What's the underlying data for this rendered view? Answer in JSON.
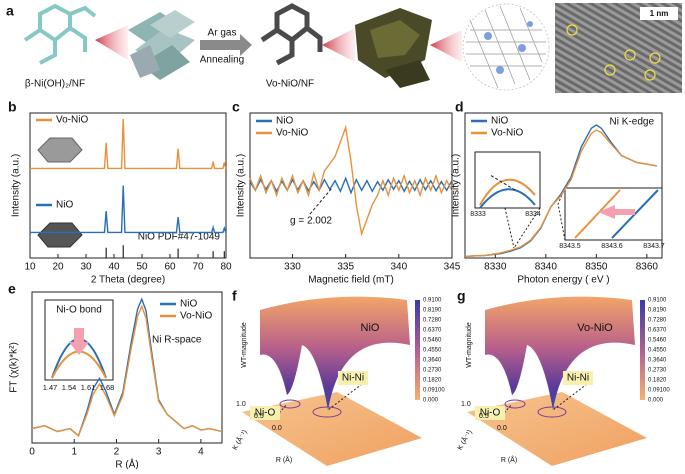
{
  "panel_labels": [
    "a",
    "b",
    "c",
    "d",
    "e",
    "f",
    "g"
  ],
  "panel_a": {
    "precursor": "β-Ni(OH)₂/NF",
    "arrow_top": "Ar gas",
    "arrow_bottom": "Annealing",
    "product": "Vo-NiO/NF",
    "scale_bar": "1 nm"
  },
  "chart_data": [
    {
      "type": "line",
      "xlabel": "2 Theta (degree)",
      "ylabel": "Intensity (a.u.)",
      "xlim": [
        10,
        80
      ],
      "ylim": [
        0,
        17
      ],
      "xticks": [
        10,
        20,
        30,
        40,
        50,
        60,
        70,
        80
      ],
      "x": [
        10,
        20,
        30,
        36.6,
        37.2,
        37.8,
        42.7,
        43.3,
        43.9,
        50,
        62.3,
        62.9,
        63.5,
        74.9,
        75.4,
        75.9,
        78.9,
        79.4,
        79.9,
        80
      ],
      "series": [
        {
          "name": "NiO",
          "color": "#2a6fb5",
          "values": [
            3,
            3,
            3,
            3,
            5.5,
            3,
            3,
            8.5,
            3,
            3,
            3,
            4.8,
            3,
            3,
            3.6,
            3,
            3,
            3.5,
            3,
            3
          ]
        },
        {
          "name": "Vo-NiO",
          "color": "#e8913a",
          "values": [
            10.5,
            10.5,
            10.5,
            10.5,
            13.5,
            10.5,
            10.5,
            16.3,
            10.5,
            10.5,
            10.5,
            12.8,
            10.5,
            10.5,
            11.3,
            10.5,
            10.5,
            11.2,
            10.5,
            10.5
          ]
        }
      ],
      "reference": {
        "label": "NiO PDF#47-1049",
        "x": [
          37.2,
          43.3,
          62.9,
          75.4,
          79.4
        ],
        "values": [
          1.2,
          1.5,
          1.1,
          0.8,
          0.8
        ]
      }
    },
    {
      "type": "line",
      "xlabel": "Magnetic field (mT)",
      "ylabel": "Intensity (a.u.)",
      "xlim": [
        326,
        345
      ],
      "ylim": [
        -1.5,
        1.5
      ],
      "xticks": [
        330,
        335,
        340,
        345
      ],
      "legend": "upper left",
      "annotation": "g = 2.002",
      "x": [
        326,
        326.5,
        327,
        327.5,
        328,
        328.5,
        329,
        329.5,
        330,
        330.5,
        331,
        331.5,
        332,
        332.5,
        333,
        333.5,
        334,
        334.5,
        335,
        335.5,
        336,
        336.5,
        337,
        337.5,
        338,
        338.5,
        339,
        339.5,
        340,
        340.5,
        341,
        341.5,
        342,
        342.5,
        343,
        343.5,
        344,
        344.5,
        345
      ],
      "series": [
        {
          "name": "NiO",
          "color": "#2a6fb5",
          "values": [
            0.08,
            -0.1,
            0.12,
            -0.08,
            0.1,
            -0.12,
            0.09,
            -0.1,
            0.12,
            -0.09,
            0.1,
            -0.11,
            0.08,
            -0.1,
            0.12,
            -0.08,
            0.1,
            -0.12,
            0.15,
            -0.15,
            0.12,
            -0.1,
            0.1,
            -0.12,
            0.08,
            -0.1,
            0.12,
            -0.08,
            0.1,
            -0.12,
            0.09,
            -0.1,
            0.12,
            -0.09,
            0.1,
            -0.11,
            0.08,
            -0.1,
            0.1
          ]
        },
        {
          "name": "Vo-NiO",
          "color": "#e8913a",
          "values": [
            0.15,
            -0.1,
            0.2,
            -0.15,
            0.1,
            -0.2,
            0.15,
            -0.1,
            0.2,
            -0.15,
            0.1,
            -0.2,
            0.25,
            -0.1,
            0.3,
            0.45,
            0.6,
            0.9,
            1.2,
            0.5,
            -0.4,
            -1.0,
            -0.7,
            -0.4,
            -0.2,
            0.1,
            -0.2,
            0.15,
            -0.1,
            0.2,
            -0.15,
            0.1,
            -0.2,
            0.15,
            -0.1,
            0.2,
            -0.15,
            0.1,
            -0.1
          ]
        }
      ]
    },
    {
      "type": "line",
      "xlabel": "Photon energy ( eV )",
      "ylabel": "Intensity (a.u.)",
      "xlim": [
        8324,
        8363
      ],
      "ylim": [
        0,
        1.7
      ],
      "xticks": [
        8330,
        8340,
        8350,
        8360
      ],
      "legend": "upper left",
      "annotation": "Ni K-edge",
      "inset_ticks": [
        [
          "8333",
          "8334"
        ],
        [
          "8343.5",
          "8343.6",
          "8343.7"
        ]
      ],
      "x": [
        8324,
        8328,
        8331,
        8333,
        8335,
        8337,
        8339,
        8341,
        8343,
        8345,
        8347,
        8349,
        8350,
        8351,
        8353,
        8355,
        8358,
        8362
      ],
      "series": [
        {
          "name": "NiO",
          "color": "#2a6fb5",
          "values": [
            0.02,
            0.03,
            0.05,
            0.08,
            0.12,
            0.2,
            0.35,
            0.6,
            0.75,
            0.95,
            1.3,
            1.52,
            1.56,
            1.52,
            1.35,
            1.2,
            1.12,
            1.08
          ]
        },
        {
          "name": "Vo-NiO",
          "color": "#e8913a",
          "values": [
            0.02,
            0.03,
            0.06,
            0.09,
            0.13,
            0.21,
            0.36,
            0.6,
            0.73,
            0.92,
            1.25,
            1.46,
            1.5,
            1.47,
            1.33,
            1.2,
            1.12,
            1.08
          ]
        }
      ]
    },
    {
      "type": "line",
      "xlabel": "R (Å)",
      "ylabel": "FT (χ(k)*k²)",
      "xlim": [
        0,
        4.5
      ],
      "ylim": [
        0,
        1.05
      ],
      "xticks": [
        0,
        1,
        2,
        3,
        4
      ],
      "legend": "upper right",
      "annotation": "Ni R-space",
      "inset_title": "Ni-O bond",
      "inset_ticks": [
        "1.47",
        "1.54",
        "1.61",
        "1.68"
      ],
      "x": [
        0,
        0.3,
        0.6,
        0.9,
        1.1,
        1.3,
        1.45,
        1.6,
        1.75,
        1.95,
        2.15,
        2.35,
        2.5,
        2.6,
        2.7,
        2.85,
        3.0,
        3.2,
        3.4,
        3.6,
        3.8,
        4.0,
        4.2,
        4.5
      ],
      "series": [
        {
          "name": "NiO",
          "color": "#2a6fb5",
          "values": [
            0.1,
            0.12,
            0.08,
            0.1,
            0.05,
            0.22,
            0.38,
            0.45,
            0.36,
            0.2,
            0.35,
            0.7,
            0.93,
            1.0,
            0.92,
            0.6,
            0.3,
            0.2,
            0.15,
            0.1,
            0.12,
            0.09,
            0.1,
            0.08
          ]
        },
        {
          "name": "Vo-NiO",
          "color": "#e8913a",
          "values": [
            0.1,
            0.12,
            0.08,
            0.1,
            0.05,
            0.2,
            0.34,
            0.41,
            0.33,
            0.19,
            0.33,
            0.66,
            0.88,
            0.95,
            0.87,
            0.57,
            0.29,
            0.2,
            0.15,
            0.1,
            0.12,
            0.09,
            0.1,
            0.08
          ]
        }
      ]
    }
  ],
  "surfaces": [
    {
      "title": "NiO",
      "peaks": [
        "Ni-O",
        "Ni-Ni"
      ],
      "zlabel": "WT-magnitude",
      "xlabel": "K (Å⁻¹)",
      "ylabel": "R (Å)",
      "r_ticks": [
        "1.0",
        "0.5",
        "0.0"
      ],
      "colorbar": [
        "0.9100",
        "0.8190",
        "0.7280",
        "0.6370",
        "0.5460",
        "0.4550",
        "0.3640",
        "0.2730",
        "0.1820",
        "0.09100",
        "0.000"
      ]
    },
    {
      "title": "Vo-NiO",
      "peaks": [
        "Ni-O",
        "Ni-Ni"
      ],
      "zlabel": "WT-magnitude",
      "xlabel": "K (Å⁻¹)",
      "ylabel": "R (Å)",
      "r_ticks": [
        "1.0",
        "0.5",
        "0.0"
      ],
      "colorbar": [
        "0.9100",
        "0.8190",
        "0.7280",
        "0.6370",
        "0.5460",
        "0.4550",
        "0.3640",
        "0.2730",
        "0.1820",
        "0.09100",
        "0.000"
      ]
    }
  ]
}
